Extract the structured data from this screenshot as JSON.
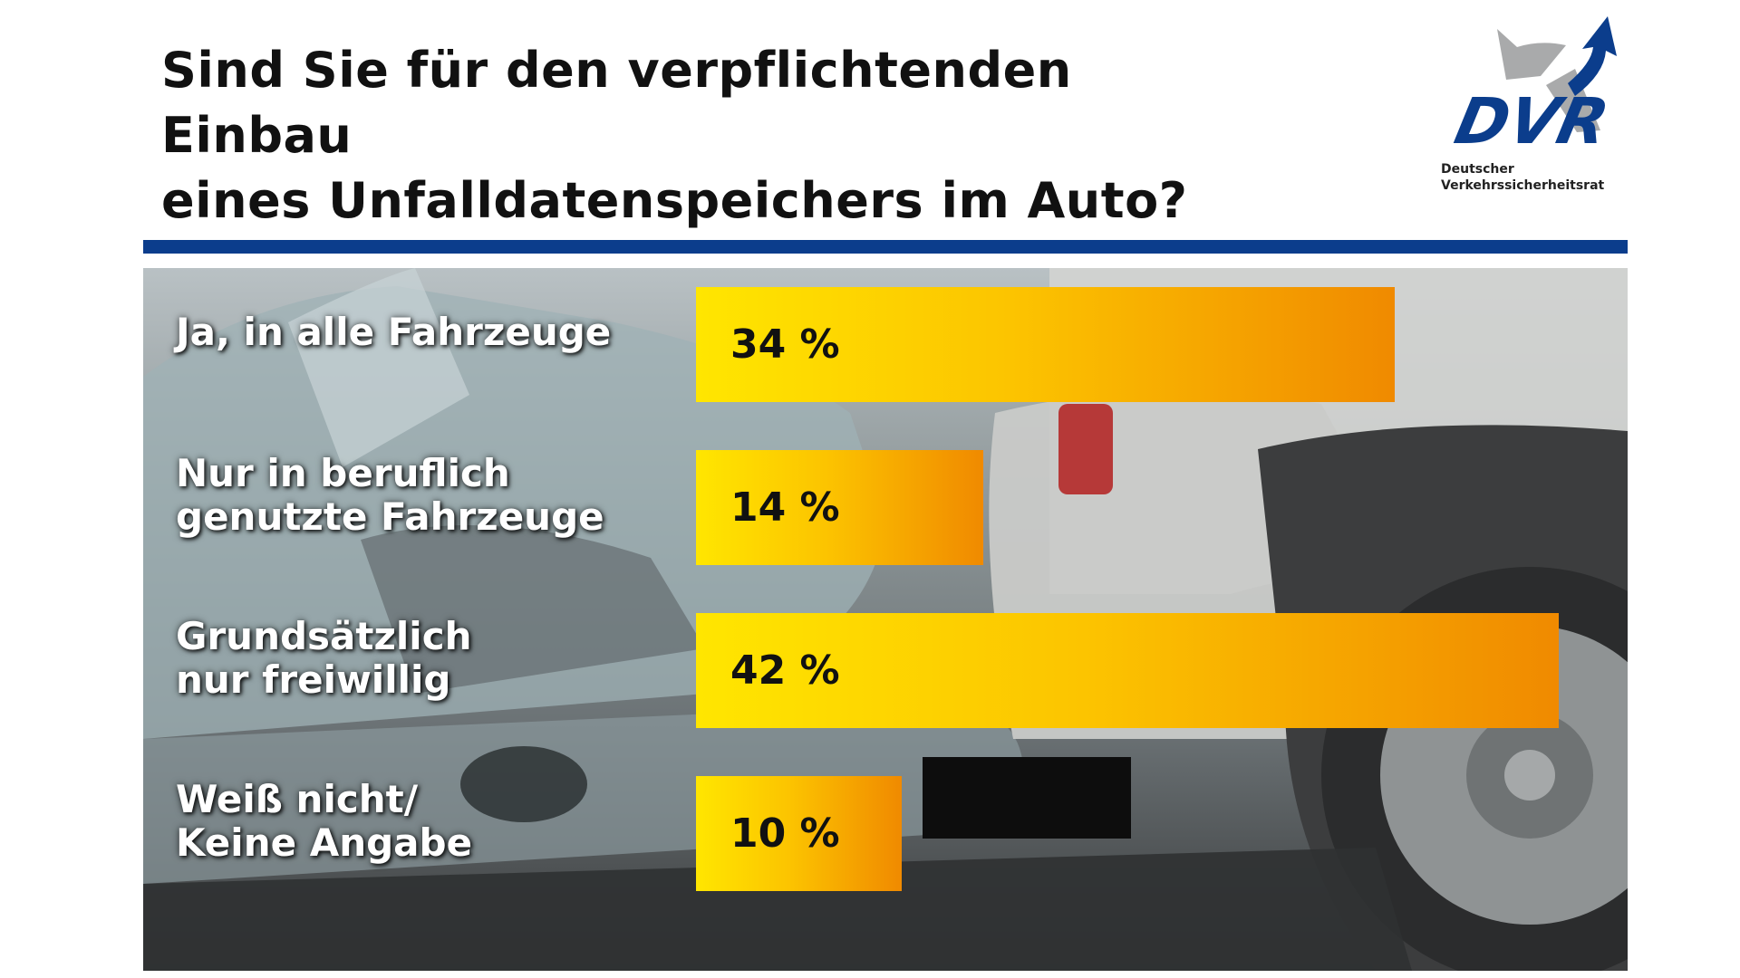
{
  "title": {
    "line1": "Sind Sie für den verpflichtenden Einbau",
    "line2": "eines Unfalldatenspeichers im Auto?"
  },
  "logo": {
    "mark": "DVR",
    "line1": "Deutscher",
    "line2": "Verkehrssicherheitsrat",
    "colors": {
      "brand_blue": "#0b3d8c",
      "grey": "#a9aaab"
    }
  },
  "colors": {
    "rule": "#0b3d8c",
    "bar_start": "#ffe600",
    "bar_end": "#f08a00"
  },
  "chart_data": {
    "type": "bar",
    "orientation": "horizontal",
    "unit": "%",
    "title": "Sind Sie für den verpflichtenden Einbau eines Unfalldatenspeichers im Auto?",
    "categories": [
      "Ja, in alle Fahrzeuge",
      "Nur in beruflich genutzte Fahrzeuge",
      "Grundsätzlich nur freiwillig",
      "Weiß nicht/ Keine Angabe"
    ],
    "values": [
      34,
      14,
      42,
      10
    ],
    "xlim": [
      0,
      42
    ],
    "grid": false,
    "legend": "none"
  },
  "bars": [
    {
      "label_lines": [
        "Ja, in alle Fahrzeuge"
      ],
      "value_text": "34 %"
    },
    {
      "label_lines": [
        "Nur in beruflich",
        "genutzte Fahrzeuge"
      ],
      "value_text": "14 %"
    },
    {
      "label_lines": [
        "Grundsätzlich",
        "nur freiwillig"
      ],
      "value_text": "42 %"
    },
    {
      "label_lines": [
        "Weiß nicht/",
        "Keine Angabe"
      ],
      "value_text": "10 %"
    }
  ]
}
